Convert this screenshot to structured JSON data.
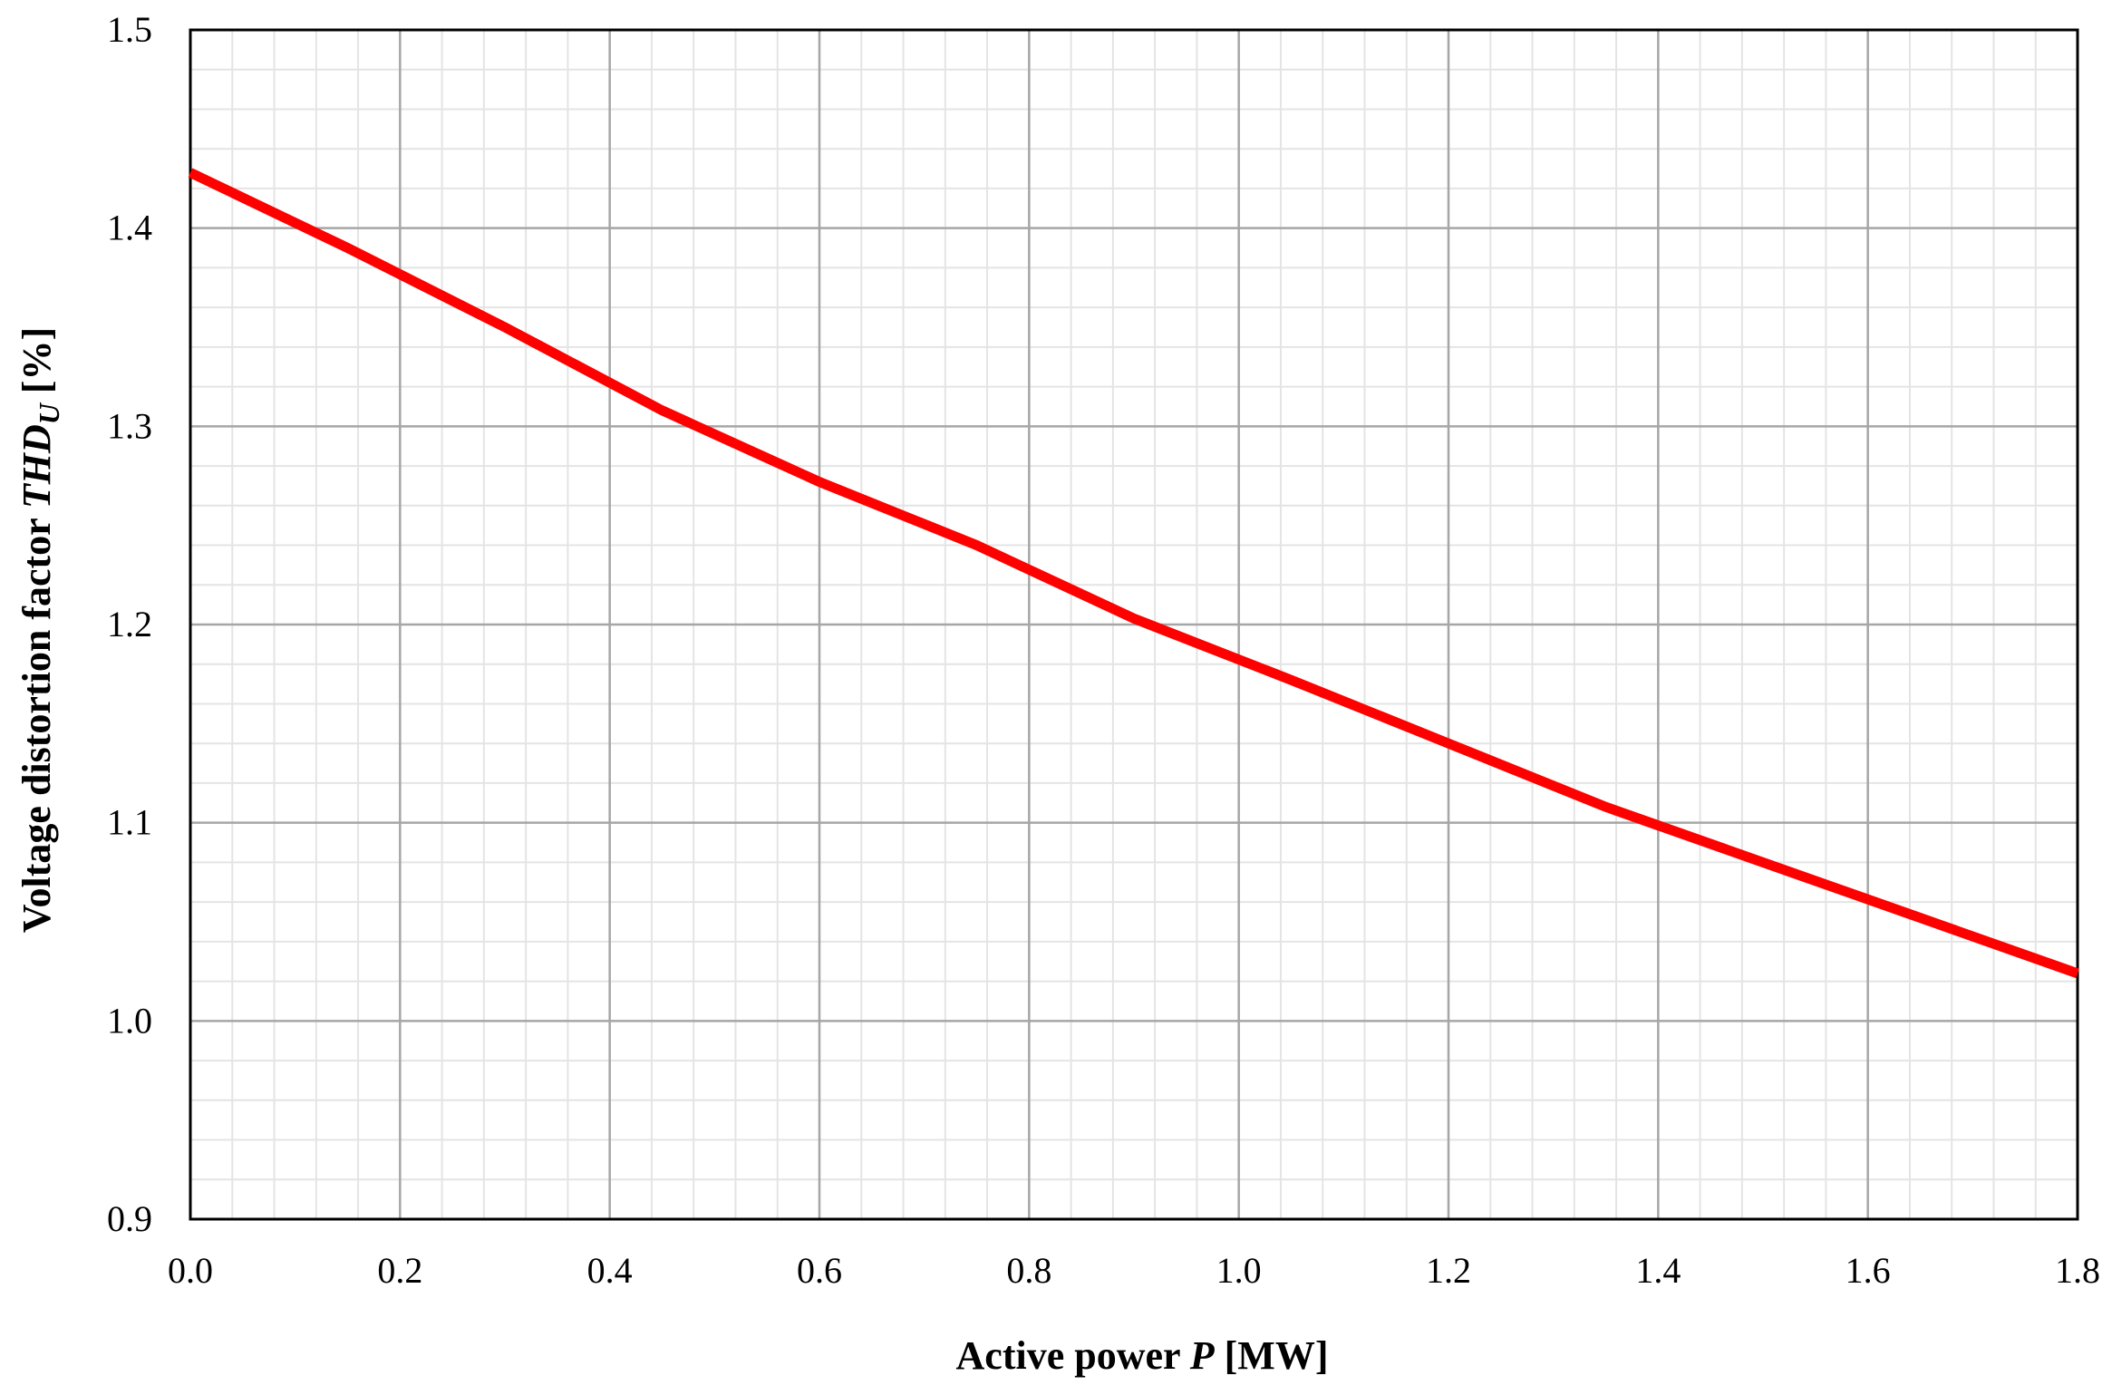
{
  "chart_data": {
    "type": "line",
    "xlabel": {
      "prefix": "Active power ",
      "symbol": "P",
      "suffix": " [MW]"
    },
    "ylabel": {
      "prefix": "Voltage distortion factor ",
      "symbol": "THD",
      "subscript": "U",
      "suffix": " [%]"
    },
    "xlim": [
      0,
      1.8
    ],
    "ylim": [
      0.9,
      1.5
    ],
    "x_ticks": [
      "0.0",
      "0.2",
      "0.4",
      "0.6",
      "0.8",
      "1.0",
      "1.2",
      "1.4",
      "1.6",
      "1.8"
    ],
    "y_ticks": [
      "0.9",
      "1.0",
      "1.1",
      "1.2",
      "1.3",
      "1.4",
      "1.5"
    ],
    "grid": true,
    "legend": false,
    "series": [
      {
        "color": "#ff0000",
        "x": [
          0.0,
          0.15,
          0.3,
          0.45,
          0.6,
          0.75,
          0.9,
          1.05,
          1.2,
          1.35,
          1.5,
          1.65,
          1.8
        ],
        "y": [
          1.428,
          1.39,
          1.35,
          1.308,
          1.272,
          1.24,
          1.203,
          1.172,
          1.14,
          1.108,
          1.08,
          1.052,
          1.024
        ]
      }
    ]
  }
}
